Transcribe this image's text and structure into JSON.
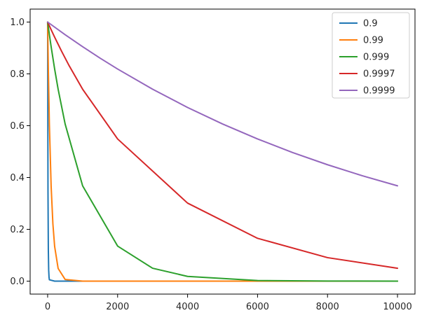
{
  "chart_data": {
    "type": "line",
    "title": "",
    "xlabel": "",
    "ylabel": "",
    "xlim": [
      -500,
      10500
    ],
    "ylim": [
      -0.05,
      1.05
    ],
    "x_ticks": [
      0,
      2000,
      4000,
      6000,
      8000,
      10000
    ],
    "x_tick_labels": [
      "0",
      "2000",
      "4000",
      "6000",
      "8000",
      "10000"
    ],
    "y_ticks": [
      0.0,
      0.2,
      0.4,
      0.6,
      0.8,
      1.0
    ],
    "y_tick_labels": [
      "0.0",
      "0.2",
      "0.4",
      "0.6",
      "0.8",
      "1.0"
    ],
    "grid": false,
    "legend_position": "top-right",
    "x_range": [
      0,
      10000
    ],
    "series": [
      {
        "name": "0.9",
        "color": "#1f77b4",
        "values": [
          1.0,
          0.348678,
          0.121577,
          0.042391,
          0.014781,
          0.005154,
          0.0,
          0.0,
          0.0,
          0.0,
          0.0,
          0.0,
          0.0
        ]
      },
      {
        "name": "0.99",
        "color": "#ff7f0e",
        "values": [
          1.0,
          0.904382,
          0.817907,
          0.605006,
          0.366032,
          0.22145,
          0.134,
          0.049,
          0.00657,
          4.3e-05,
          0.0,
          0.0,
          0.0
        ]
      },
      {
        "name": "0.999",
        "color": "#2ca02c",
        "values": [
          1.0,
          0.951206,
          0.904837,
          0.818731,
          0.740818,
          0.606531,
          0.367879,
          0.135335,
          0.049787,
          0.018316,
          0.002479,
          0.000335,
          4.5e-05
        ]
      },
      {
        "name": "0.9997",
        "color": "#d62728",
        "values": [
          1.0,
          0.970446,
          0.941765,
          0.88692,
          0.83527,
          0.740818,
          0.548812,
          0.301194,
          0.165299,
          0.090718,
          0.049787
        ]
      },
      {
        "name": "0.9999",
        "color": "#9467bd",
        "values": [
          1.0,
          0.951229,
          0.904837,
          0.860708,
          0.818731,
          0.740818,
          0.67032,
          0.606531,
          0.548812,
          0.496585,
          0.449329,
          0.40657,
          0.367879
        ]
      }
    ],
    "series_x": [
      [
        0,
        10,
        20,
        30,
        40,
        50,
        200,
        500,
        1000,
        2000,
        4000,
        6000,
        10000
      ],
      [
        0,
        10,
        20,
        50,
        100,
        150,
        200,
        300,
        500,
        1000,
        2000,
        5000,
        10000
      ],
      [
        0,
        50,
        100,
        200,
        300,
        500,
        1000,
        2000,
        3000,
        4000,
        6000,
        8000,
        10000
      ],
      [
        0,
        100,
        200,
        400,
        600,
        1000,
        2000,
        4000,
        6000,
        8000,
        10000
      ],
      [
        0,
        500,
        1000,
        1500,
        2000,
        3000,
        4000,
        5000,
        6000,
        7000,
        8000,
        9000,
        10000
      ]
    ]
  }
}
